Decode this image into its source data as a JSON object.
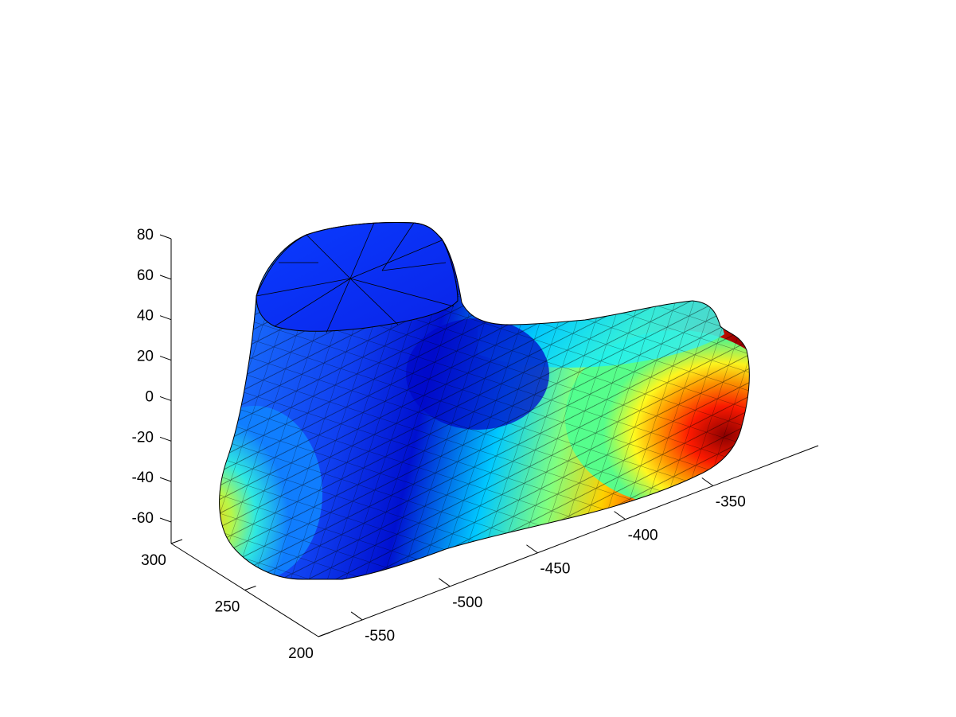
{
  "chart_data": {
    "type": "surface",
    "title": "",
    "xlabel": "",
    "ylabel": "",
    "zlabel": "",
    "x_axis": {
      "ticks": [
        -550,
        -500,
        -450,
        -400,
        -350
      ],
      "range": [
        -575,
        -290
      ]
    },
    "y_axis": {
      "ticks": [
        200,
        250,
        300
      ],
      "range": [
        200,
        300
      ]
    },
    "z_axis": {
      "ticks": [
        -60,
        -40,
        -20,
        0,
        20,
        40,
        60,
        80
      ],
      "range": [
        -70,
        80
      ]
    },
    "grid": false,
    "legend": "none",
    "colormap": "jet",
    "colormap_stops": [
      "#00008f",
      "#0000ff",
      "#0080ff",
      "#00ffff",
      "#80ff80",
      "#ffff00",
      "#ff8000",
      "#ff0000",
      "#800000"
    ],
    "edge_color": "#000000",
    "surface_regions": [
      {
        "region": "ankle-top-cap",
        "color_level": 0.12
      },
      {
        "region": "ankle-front",
        "color_level": 0.18
      },
      {
        "region": "instep",
        "color_level": 0.08
      },
      {
        "region": "heel",
        "color_level": 0.55
      },
      {
        "region": "forefoot-top",
        "color_level": 0.42
      },
      {
        "region": "toe-region",
        "color_level": 0.88
      }
    ]
  }
}
